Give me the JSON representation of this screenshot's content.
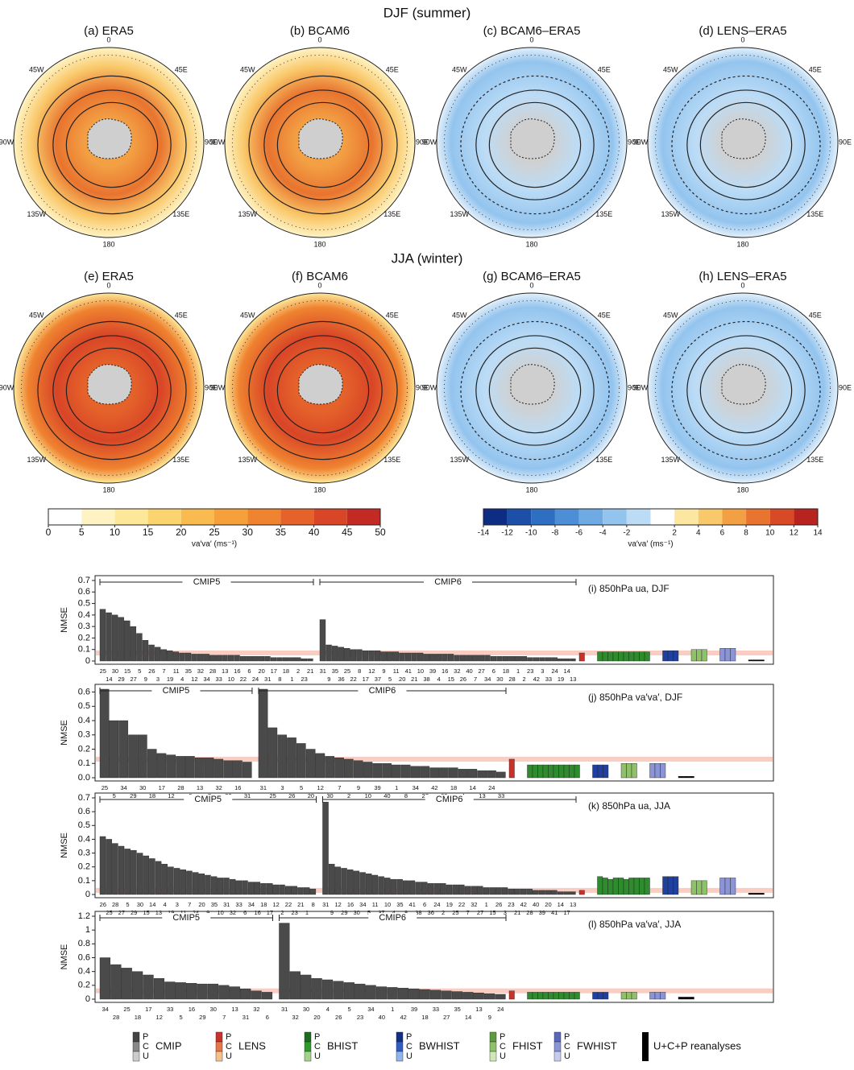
{
  "maps": {
    "rows": [
      {
        "title": "DJF (summer)",
        "panels": [
          "(a) ERA5",
          "(b) BCAM6",
          "(c) BCAM6–ERA5",
          "(d) LENS–ERA5"
        ]
      },
      {
        "title": "JJA (winter)",
        "panels": [
          "(e) ERA5",
          "(f) BCAM6",
          "(g) BCAM6–ERA5",
          "(h) LENS–ERA5"
        ]
      }
    ],
    "lon_labels": [
      "0",
      "45E",
      "90E",
      "135E",
      "180",
      "135W",
      "90W",
      "45W"
    ],
    "colorbars": [
      {
        "label": "va′va′ (ms⁻¹)",
        "ticks": [
          0,
          5,
          10,
          15,
          20,
          25,
          30,
          35,
          40,
          45,
          50
        ],
        "colors": [
          "#ffffff",
          "#fff3c4",
          "#fde89a",
          "#fbd470",
          "#f9bb50",
          "#f5a03a",
          "#ef8330",
          "#e5632a",
          "#d84527",
          "#c42a24"
        ]
      },
      {
        "label": "va′va′ (ms⁻¹)",
        "ticks": [
          -14,
          -12,
          -10,
          -8,
          -6,
          -4,
          -2,
          2,
          4,
          6,
          8,
          10,
          12,
          14
        ],
        "colors": [
          "#0d2c84",
          "#1c4fa8",
          "#2e6fc2",
          "#4c8fd6",
          "#6eaae3",
          "#93c4ee",
          "#bcdcf6",
          "#ffffff",
          "#fbe7a0",
          "#f9c86a",
          "#f3a044",
          "#e8742f",
          "#d84a26",
          "#b8221f"
        ]
      }
    ]
  },
  "chart_data": [
    {
      "type": "bar",
      "title": "(i) 850hPa ua, DJF",
      "ylabel": "NMSE",
      "ylim": [
        0,
        0.7
      ],
      "yticks": [
        0,
        0.1,
        0.2,
        0.3,
        0.4,
        0.5,
        0.6,
        0.7
      ],
      "groups": [
        {
          "name": "CMIP5",
          "categories": [
            "25",
            "14",
            "30",
            "29",
            "15",
            "27",
            "5",
            "9",
            "26",
            "3",
            "7",
            "19",
            "11",
            "4",
            "35",
            "12",
            "32",
            "34",
            "28",
            "33",
            "13",
            "10",
            "16",
            "22",
            "6",
            "24",
            "20",
            "31",
            "17",
            "8",
            "18",
            "1",
            "2",
            "23",
            "21"
          ],
          "values": [
            0.45,
            0.42,
            0.4,
            0.38,
            0.35,
            0.3,
            0.24,
            0.18,
            0.14,
            0.12,
            0.1,
            0.09,
            0.08,
            0.07,
            0.07,
            0.06,
            0.06,
            0.06,
            0.05,
            0.05,
            0.05,
            0.05,
            0.05,
            0.04,
            0.04,
            0.04,
            0.04,
            0.04,
            0.03,
            0.03,
            0.03,
            0.03,
            0.03,
            0.02,
            0.02
          ]
        },
        {
          "name": "CMIP6",
          "categories": [
            "31",
            "9",
            "35",
            "36",
            "25",
            "22",
            "8",
            "17",
            "12",
            "37",
            "9",
            "5",
            "11",
            "20",
            "41",
            "21",
            "10",
            "38",
            "39",
            "4",
            "16",
            "15",
            "32",
            "26",
            "40",
            "7",
            "27",
            "34",
            "6",
            "30",
            "18",
            "28",
            "1",
            "2",
            "23",
            "42",
            "3",
            "33",
            "24",
            "19",
            "14",
            "13"
          ],
          "values": [
            0.36,
            0.14,
            0.13,
            0.12,
            0.11,
            0.1,
            0.1,
            0.09,
            0.09,
            0.09,
            0.08,
            0.08,
            0.08,
            0.07,
            0.07,
            0.07,
            0.07,
            0.06,
            0.06,
            0.06,
            0.06,
            0.06,
            0.05,
            0.05,
            0.05,
            0.05,
            0.05,
            0.05,
            0.04,
            0.04,
            0.04,
            0.04,
            0.04,
            0.04,
            0.03,
            0.03,
            0.03,
            0.03,
            0.03,
            0.02,
            0.02,
            0.02
          ]
        }
      ],
      "ensembles": [
        {
          "color": "#c8322a",
          "values": [
            0.07
          ]
        },
        {
          "color": "#2e8b2e",
          "values": [
            0.08,
            0.08,
            0.08,
            0.08,
            0.08,
            0.08,
            0.08,
            0.08,
            0.08,
            0.08
          ]
        },
        {
          "color": "#2040a0",
          "values": [
            0.09,
            0.09,
            0.09
          ]
        },
        {
          "color": "#8fc06a",
          "values": [
            0.1,
            0.1,
            0.1
          ]
        },
        {
          "color": "#8a94d6",
          "values": [
            0.11,
            0.11,
            0.11
          ]
        },
        {
          "color": "#000000",
          "values": [
            0.01,
            0.01,
            0.01
          ]
        }
      ]
    },
    {
      "type": "bar",
      "title": "(j) 850hPa va′va′, DJF",
      "ylabel": "NMSE",
      "ylim": [
        0,
        0.62
      ],
      "yticks": [
        {
          "value": 0,
          "label": "0.0"
        },
        0.1,
        0.2,
        0.3,
        0.4,
        0.5,
        0.6
      ],
      "groups": [
        {
          "name": "CMIP5",
          "categories": [
            "25",
            "5",
            "34",
            "29",
            "30",
            "18",
            "17",
            "12",
            "28",
            "6",
            "13",
            "7",
            "32",
            "33",
            "16",
            "31"
          ],
          "values": [
            0.62,
            0.4,
            0.4,
            0.3,
            0.3,
            0.2,
            0.17,
            0.16,
            0.15,
            0.15,
            0.14,
            0.14,
            0.13,
            0.12,
            0.12,
            0.11
          ]
        },
        {
          "name": "CMIP6",
          "categories": [
            "31",
            "25",
            "3",
            "26",
            "5",
            "20",
            "12",
            "30",
            "7",
            "2",
            "9",
            "10",
            "39",
            "40",
            "1",
            "8",
            "34",
            "27",
            "42",
            "23",
            "18",
            "4",
            "14",
            "13",
            "24",
            "33"
          ],
          "values": [
            0.62,
            0.35,
            0.3,
            0.28,
            0.24,
            0.2,
            0.17,
            0.15,
            0.14,
            0.13,
            0.12,
            0.11,
            0.1,
            0.1,
            0.09,
            0.09,
            0.08,
            0.08,
            0.07,
            0.07,
            0.07,
            0.06,
            0.06,
            0.05,
            0.05,
            0.04
          ]
        }
      ],
      "ensembles": [
        {
          "color": "#c8322a",
          "values": [
            0.13
          ]
        },
        {
          "color": "#2e8b2e",
          "values": [
            0.09,
            0.09,
            0.09,
            0.09,
            0.09,
            0.09,
            0.09,
            0.09,
            0.09,
            0.09
          ]
        },
        {
          "color": "#2040a0",
          "values": [
            0.09,
            0.09,
            0.09
          ]
        },
        {
          "color": "#8fc06a",
          "values": [
            0.1,
            0.1,
            0.1
          ]
        },
        {
          "color": "#8a94d6",
          "values": [
            0.1,
            0.1,
            0.1
          ]
        },
        {
          "color": "#000000",
          "values": [
            0.01,
            0.01,
            0.01
          ]
        }
      ]
    },
    {
      "type": "bar",
      "title": "(k) 850hPa ua, JJA",
      "ylabel": "NMSE",
      "ylim": [
        0,
        0.7
      ],
      "yticks": [
        0,
        0.1,
        0.2,
        0.3,
        0.4,
        0.5,
        0.6,
        0.7
      ],
      "groups": [
        {
          "name": "CMIP5",
          "categories": [
            "26",
            "25",
            "28",
            "27",
            "5",
            "29",
            "30",
            "15",
            "14",
            "13",
            "4",
            "19",
            "3",
            "11",
            "7",
            "24",
            "20",
            "9",
            "35",
            "10",
            "31",
            "32",
            "33",
            "6",
            "34",
            "16",
            "18",
            "17",
            "12",
            "2",
            "22",
            "23",
            "21",
            "1",
            "8"
          ],
          "values": [
            0.42,
            0.4,
            0.37,
            0.35,
            0.33,
            0.32,
            0.3,
            0.28,
            0.26,
            0.24,
            0.22,
            0.2,
            0.19,
            0.18,
            0.17,
            0.16,
            0.15,
            0.14,
            0.13,
            0.12,
            0.12,
            0.11,
            0.1,
            0.1,
            0.09,
            0.09,
            0.08,
            0.08,
            0.07,
            0.07,
            0.06,
            0.06,
            0.05,
            0.05,
            0.04
          ]
        },
        {
          "name": "CMIP6",
          "categories": [
            "31",
            "9",
            "12",
            "29",
            "16",
            "30",
            "34",
            "5",
            "11",
            "37",
            "10",
            "4",
            "35",
            "8",
            "41",
            "38",
            "6",
            "36",
            "24",
            "2",
            "19",
            "25",
            "22",
            "7",
            "32",
            "27",
            "1",
            "15",
            "26",
            "3",
            "23",
            "21",
            "42",
            "28",
            "40",
            "39",
            "20",
            "41",
            "14",
            "17",
            "13"
          ],
          "values": [
            0.67,
            0.22,
            0.2,
            0.19,
            0.18,
            0.17,
            0.16,
            0.15,
            0.14,
            0.13,
            0.12,
            0.11,
            0.11,
            0.1,
            0.1,
            0.09,
            0.09,
            0.08,
            0.08,
            0.08,
            0.07,
            0.07,
            0.07,
            0.06,
            0.06,
            0.06,
            0.05,
            0.05,
            0.05,
            0.05,
            0.04,
            0.04,
            0.04,
            0.04,
            0.03,
            0.03,
            0.03,
            0.03,
            0.02,
            0.02,
            0.02
          ]
        }
      ],
      "ensembles": [
        {
          "color": "#c8322a",
          "values": [
            0.03
          ]
        },
        {
          "color": "#2e8b2e",
          "values": [
            0.13,
            0.12,
            0.11,
            0.12,
            0.12,
            0.11,
            0.12,
            0.12,
            0.12,
            0.12
          ]
        },
        {
          "color": "#2040a0",
          "values": [
            0.13,
            0.13,
            0.13
          ]
        },
        {
          "color": "#8fc06a",
          "values": [
            0.1,
            0.1,
            0.1
          ]
        },
        {
          "color": "#8a94d6",
          "values": [
            0.12,
            0.12,
            0.12
          ]
        },
        {
          "color": "#000000",
          "values": [
            0.01,
            0.01,
            0.01
          ]
        }
      ]
    },
    {
      "type": "bar",
      "title": "(l) 850hPa va′va′, JJA",
      "ylabel": "NMSE",
      "ylim": [
        0,
        1.2
      ],
      "yticks": [
        0,
        0.2,
        0.4,
        0.6,
        0.8,
        1,
        1.2
      ],
      "groups": [
        {
          "name": "CMIP5",
          "categories": [
            "34",
            "28",
            "25",
            "18",
            "17",
            "12",
            "33",
            "5",
            "16",
            "29",
            "30",
            "7",
            "13",
            "31",
            "32",
            "6"
          ],
          "values": [
            0.6,
            0.5,
            0.45,
            0.4,
            0.35,
            0.3,
            0.25,
            0.24,
            0.23,
            0.22,
            0.22,
            0.2,
            0.18,
            0.15,
            0.12,
            0.1
          ]
        },
        {
          "name": "CMIP6",
          "categories": [
            "31",
            "32",
            "30",
            "20",
            "4",
            "26",
            "5",
            "23",
            "34",
            "40",
            "1",
            "42",
            "39",
            "18",
            "33",
            "27",
            "35",
            "14",
            "13",
            "9",
            "24"
          ],
          "values": [
            1.1,
            0.4,
            0.35,
            0.3,
            0.28,
            0.26,
            0.24,
            0.22,
            0.2,
            0.18,
            0.17,
            0.16,
            0.15,
            0.14,
            0.13,
            0.12,
            0.11,
            0.1,
            0.09,
            0.08,
            0.07
          ]
        }
      ],
      "ensembles": [
        {
          "color": "#c8322a",
          "values": [
            0.12
          ]
        },
        {
          "color": "#2e8b2e",
          "values": [
            0.1,
            0.1,
            0.1,
            0.1,
            0.1,
            0.1,
            0.1,
            0.1,
            0.1,
            0.1
          ]
        },
        {
          "color": "#2040a0",
          "values": [
            0.1,
            0.1,
            0.1
          ]
        },
        {
          "color": "#8fc06a",
          "values": [
            0.1,
            0.1,
            0.1
          ]
        },
        {
          "color": "#8a94d6",
          "values": [
            0.1,
            0.1,
            0.1
          ]
        },
        {
          "color": "#000000",
          "values": [
            0.03,
            0.03,
            0.03
          ]
        }
      ]
    }
  ],
  "legend": {
    "levels": [
      "P",
      "C",
      "U"
    ],
    "items": [
      {
        "name": "CMIP",
        "colors": [
          "#444444",
          "#888888",
          "#cccccc"
        ]
      },
      {
        "name": "LENS",
        "colors": [
          "#c8322a",
          "#e8764a",
          "#f6c08a"
        ]
      },
      {
        "name": "BHIST",
        "colors": [
          "#1d6b1d",
          "#2e9b2e",
          "#9fd48a"
        ]
      },
      {
        "name": "BWHIST",
        "colors": [
          "#142f80",
          "#2e5fc0",
          "#8fb4ee"
        ]
      },
      {
        "name": "FHIST",
        "colors": [
          "#5f9a40",
          "#8fc06a",
          "#cfe6b6"
        ]
      },
      {
        "name": "FWHIST",
        "colors": [
          "#5a66b8",
          "#8a94d6",
          "#c6ccf0"
        ]
      },
      {
        "name": "U+C+P reanalyses",
        "colors": [
          "#000000"
        ]
      }
    ]
  }
}
